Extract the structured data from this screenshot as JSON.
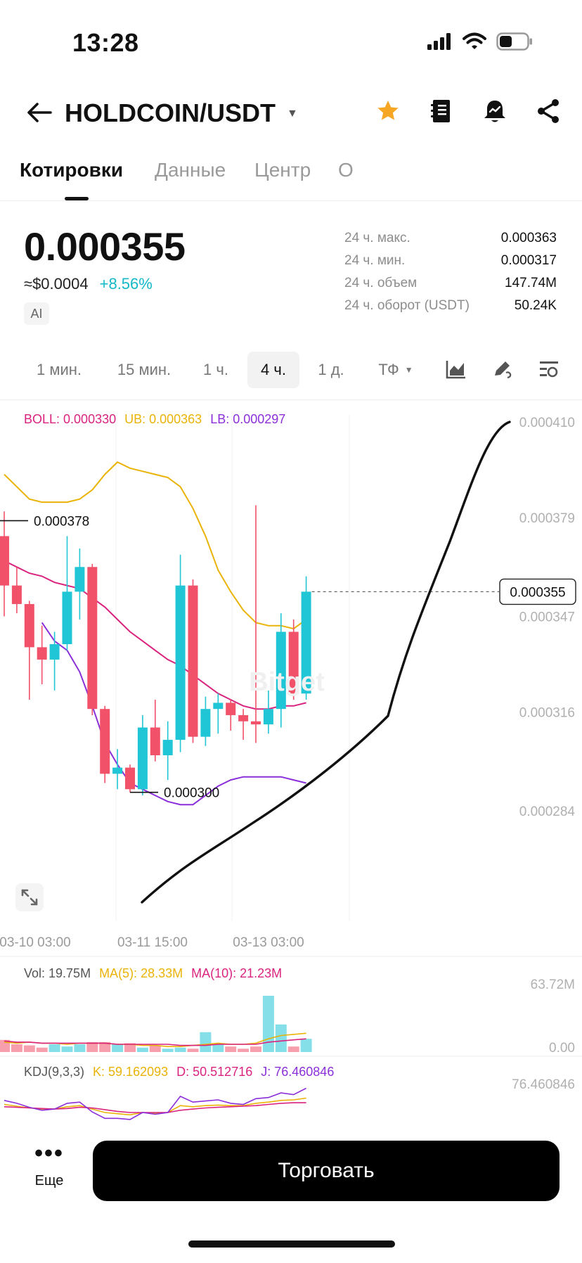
{
  "status_bar": {
    "time": "13:28"
  },
  "header": {
    "pair": "HOLDCOIN/USDT"
  },
  "tabs": [
    {
      "label": "Котировки",
      "active": true
    },
    {
      "label": "Данные",
      "active": false
    },
    {
      "label": "Центр",
      "active": false
    },
    {
      "label": "О",
      "active": false
    }
  ],
  "price": {
    "last": "0.000355",
    "usd": "≈$0.0004",
    "change": "+8.56%",
    "ai_badge": "AI"
  },
  "stats": [
    {
      "label": "24 ч. макс.",
      "value": "0.000363"
    },
    {
      "label": "24 ч. мин.",
      "value": "0.000317"
    },
    {
      "label": "24 ч. объем",
      "value": "147.74M"
    },
    {
      "label": "24 ч. оборот (USDT)",
      "value": "50.24K"
    }
  ],
  "timeframes": [
    {
      "label": "1 мин.",
      "active": false
    },
    {
      "label": "15 мин.",
      "active": false
    },
    {
      "label": "1 ч.",
      "active": false
    },
    {
      "label": "4 ч.",
      "active": true
    },
    {
      "label": "1 д.",
      "active": false
    },
    {
      "label": "ТФ",
      "active": false
    }
  ],
  "legends": {
    "boll": {
      "boll": "BOLL: 0.000330",
      "ub": "UB: 0.000363",
      "lb": "LB: 0.000297"
    },
    "vol": {
      "vol": "Vol: 19.75M",
      "ma5": "MA(5): 28.33M",
      "ma10": "MA(10): 21.23M"
    },
    "kdj": {
      "kdj": "KDJ(9,3,3)",
      "k": "K: 59.162093",
      "d": "D: 50.512716",
      "j": "J: 76.460846"
    }
  },
  "colors": {
    "up": "#20c5d6",
    "down": "#f2516a",
    "boll": "#d9237f",
    "ub": "#eab308",
    "lb": "#8b2fd9",
    "change": "#14b8c8"
  },
  "chart_data": {
    "type": "candlestick",
    "y_axis_labels": [
      "0.000410",
      "0.000379",
      "0.000347",
      "0.000316",
      "0.000284"
    ],
    "x_axis_labels": [
      "03-10 03:00",
      "03-11 15:00",
      "03-13 03:00"
    ],
    "current_price_label": "0.000355",
    "high_marker": "0.000378",
    "low_marker": "0.000300",
    "candles": [
      {
        "o": 0.000373,
        "h": 0.000381,
        "l": 0.000347,
        "c": 0.000357
      },
      {
        "o": 0.000357,
        "h": 0.000363,
        "l": 0.000348,
        "c": 0.000351
      },
      {
        "o": 0.000351,
        "h": 0.000352,
        "l": 0.00032,
        "c": 0.000337
      },
      {
        "o": 0.000337,
        "h": 0.000344,
        "l": 0.000325,
        "c": 0.000333
      },
      {
        "o": 0.000333,
        "h": 0.000342,
        "l": 0.000323,
        "c": 0.000338
      },
      {
        "o": 0.000338,
        "h": 0.000373,
        "l": 0.000336,
        "c": 0.000355
      },
      {
        "o": 0.000355,
        "h": 0.000369,
        "l": 0.000346,
        "c": 0.000363
      },
      {
        "o": 0.000363,
        "h": 0.000364,
        "l": 0.000315,
        "c": 0.000317
      },
      {
        "o": 0.000317,
        "h": 0.000318,
        "l": 0.000293,
        "c": 0.000296
      },
      {
        "o": 0.000296,
        "h": 0.000304,
        "l": 0.000291,
        "c": 0.000298
      },
      {
        "o": 0.000298,
        "h": 0.000299,
        "l": 0.00029,
        "c": 0.000291
      },
      {
        "o": 0.000291,
        "h": 0.000315,
        "l": 0.000289,
        "c": 0.000311
      },
      {
        "o": 0.000311,
        "h": 0.00032,
        "l": 0.0003,
        "c": 0.000302
      },
      {
        "o": 0.000302,
        "h": 0.000313,
        "l": 0.000294,
        "c": 0.000307
      },
      {
        "o": 0.000307,
        "h": 0.000367,
        "l": 0.000303,
        "c": 0.000357
      },
      {
        "o": 0.000357,
        "h": 0.000359,
        "l": 0.000306,
        "c": 0.000308
      },
      {
        "o": 0.000308,
        "h": 0.000321,
        "l": 0.000305,
        "c": 0.000317
      },
      {
        "o": 0.000317,
        "h": 0.000322,
        "l": 0.000309,
        "c": 0.000319
      },
      {
        "o": 0.000319,
        "h": 0.00032,
        "l": 0.00031,
        "c": 0.000315
      },
      {
        "o": 0.000315,
        "h": 0.000317,
        "l": 0.000307,
        "c": 0.000313
      },
      {
        "o": 0.000313,
        "h": 0.000383,
        "l": 0.000306,
        "c": 0.000312
      },
      {
        "o": 0.000312,
        "h": 0.000323,
        "l": 0.000309,
        "c": 0.000317
      },
      {
        "o": 0.000317,
        "h": 0.000348,
        "l": 0.000311,
        "c": 0.000342
      },
      {
        "o": 0.000342,
        "h": 0.000346,
        "l": 0.00032,
        "c": 0.000322
      },
      {
        "o": 0.000322,
        "h": 0.00036,
        "l": 0.00032,
        "c": 0.000355
      }
    ],
    "boll_upper": [
      0.000393,
      0.000389,
      0.000385,
      0.000384,
      0.000384,
      0.000384,
      0.000385,
      0.000388,
      0.000393,
      0.000397,
      0.000395,
      0.000394,
      0.000393,
      0.000392,
      0.000389,
      0.000382,
      0.000373,
      0.000362,
      0.000355,
      0.000349,
      0.000345,
      0.000344,
      0.000344,
      0.000343,
      0.000346
    ],
    "boll_mid": [
      0.000365,
      0.000363,
      0.000361,
      0.00036,
      0.000358,
      0.000357,
      0.000356,
      0.000353,
      0.00035,
      0.000346,
      0.000342,
      0.000339,
      0.000336,
      0.000333,
      0.000331,
      0.000328,
      0.000325,
      0.000322,
      0.00032,
      0.000318,
      0.000317,
      0.000317,
      0.000318,
      0.000318,
      0.000319
    ],
    "boll_lower": [
      null,
      null,
      null,
      0.000345,
      0.000339,
      0.000336,
      0.000329,
      0.000318,
      0.000306,
      0.000299,
      0.000293,
      0.000291,
      0.000289,
      0.000287,
      0.000286,
      0.000286,
      0.000289,
      0.000292,
      0.000294,
      0.000295,
      0.000295,
      0.000295,
      0.000295,
      0.000294,
      0.000293
    ],
    "volume": {
      "y_labels": [
        "63.72M",
        "0.00"
      ],
      "bars": [
        11,
        7,
        6,
        4,
        7,
        5,
        7,
        9,
        9,
        7,
        8,
        4,
        6,
        3,
        4,
        3,
        18,
        7,
        5,
        3,
        5,
        51,
        25,
        5,
        12
      ],
      "ma5": [
        9,
        8,
        9,
        8,
        8,
        7,
        8,
        8,
        8,
        7,
        7,
        6,
        6,
        5,
        5,
        6,
        7,
        8,
        7,
        7,
        8,
        12,
        15,
        16,
        17
      ],
      "ma10": [
        10,
        9,
        9,
        8,
        8,
        8,
        8,
        8,
        8,
        7,
        7,
        7,
        7,
        7,
        6,
        6,
        6,
        7,
        7,
        7,
        7,
        9,
        10,
        11,
        12
      ]
    },
    "kdj": {
      "y_label": "76.460846",
      "k": [
        48,
        45,
        42,
        40,
        40,
        44,
        46,
        40,
        34,
        32,
        30,
        34,
        33,
        34,
        46,
        44,
        46,
        47,
        46,
        46,
        50,
        52,
        55,
        56,
        59
      ],
      "d": [
        44,
        43,
        42,
        41,
        40,
        41,
        43,
        42,
        39,
        36,
        34,
        34,
        34,
        34,
        38,
        40,
        42,
        43,
        44,
        45,
        46,
        48,
        50,
        51,
        51
      ],
      "j": [
        55,
        50,
        43,
        38,
        40,
        50,
        52,
        35,
        24,
        24,
        22,
        34,
        31,
        34,
        62,
        52,
        54,
        56,
        50,
        48,
        58,
        60,
        68,
        65,
        76
      ]
    }
  }
}
